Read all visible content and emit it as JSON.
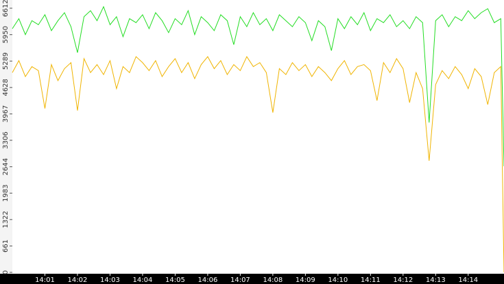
{
  "chart_data": {
    "type": "line",
    "x": [
      0,
      0.2,
      0.4,
      0.6,
      0.8,
      1.0,
      1.2,
      1.4,
      1.6,
      1.8,
      2.0,
      2.2,
      2.4,
      2.6,
      2.8,
      3.0,
      3.2,
      3.4,
      3.6,
      3.8,
      4.0,
      4.2,
      4.4,
      4.6,
      4.8,
      5.0,
      5.2,
      5.4,
      5.6,
      5.8,
      6.0,
      6.2,
      6.4,
      6.6,
      6.8,
      7.0,
      7.2,
      7.4,
      7.6,
      7.8,
      8.0,
      8.2,
      8.4,
      8.6,
      8.8,
      9.0,
      9.2,
      9.4,
      9.6,
      9.8,
      10.0,
      10.2,
      10.4,
      10.6,
      10.8,
      11.0,
      11.2,
      11.4,
      11.6,
      11.8,
      12.0,
      12.2,
      12.4,
      12.6,
      12.8,
      13.0,
      13.2,
      13.4,
      13.6,
      13.8,
      14.0,
      14.2,
      14.4,
      14.6,
      14.8,
      15.0,
      15.1
    ],
    "series": [
      {
        "color": "#22dd22",
        "values": [
          6100,
          6350,
          5950,
          6300,
          6200,
          6450,
          6050,
          6300,
          6500,
          6150,
          5500,
          6400,
          6550,
          6300,
          6650,
          6200,
          6400,
          5900,
          6350,
          6250,
          6450,
          6100,
          6500,
          6300,
          6000,
          6350,
          6200,
          6550,
          5950,
          6400,
          6250,
          6050,
          6450,
          6300,
          5700,
          6400,
          6150,
          6500,
          6200,
          6350,
          6050,
          6450,
          6300,
          6150,
          6400,
          6250,
          5800,
          6300,
          6150,
          5550,
          6350,
          6100,
          6400,
          6200,
          6500,
          6050,
          6350,
          6250,
          6450,
          6150,
          6300,
          6100,
          6400,
          6250,
          3750,
          6300,
          6450,
          6150,
          6400,
          6300,
          6550,
          6350,
          6500,
          6600,
          6250,
          6350,
          2655
        ]
      },
      {
        "color": "#f0b400",
        "values": [
          5000,
          5300,
          4900,
          5150,
          5050,
          4100,
          5200,
          4800,
          5100,
          5250,
          4050,
          5350,
          5000,
          5200,
          4950,
          5300,
          4600,
          5150,
          5000,
          5400,
          5250,
          5050,
          5300,
          4900,
          5150,
          5350,
          5000,
          5250,
          4850,
          5200,
          5400,
          5100,
          5300,
          4950,
          5200,
          5050,
          5400,
          5150,
          5250,
          5000,
          4000,
          5100,
          4950,
          5250,
          5050,
          5200,
          4900,
          5150,
          5000,
          4800,
          5100,
          5300,
          4950,
          5150,
          5200,
          5050,
          4300,
          5250,
          5000,
          5350,
          5100,
          4250,
          5000,
          4600,
          2792,
          4700,
          5050,
          4850,
          5150,
          4950,
          4600,
          5100,
          4900,
          4200,
          5000,
          5150,
          0
        ]
      }
    ],
    "xlim": [
      0,
      15.1
    ],
    "xticks": [
      {
        "value": 1,
        "label": "14:01"
      },
      {
        "value": 2,
        "label": "14:02"
      },
      {
        "value": 3,
        "label": "14:03"
      },
      {
        "value": 4,
        "label": "14:04"
      },
      {
        "value": 5,
        "label": "14:05"
      },
      {
        "value": 6,
        "label": "14:06"
      },
      {
        "value": 7,
        "label": "14:07"
      },
      {
        "value": 8,
        "label": "14:08"
      },
      {
        "value": 9,
        "label": "14:09"
      },
      {
        "value": 10,
        "label": "14:10"
      },
      {
        "value": 11,
        "label": "14:11"
      },
      {
        "value": 12,
        "label": "14:12"
      },
      {
        "value": 13,
        "label": "14:13"
      },
      {
        "value": 14,
        "label": "14:14"
      }
    ],
    "ylim": [
      0,
      6612
    ],
    "yticks": [
      0,
      661,
      1322,
      1983,
      2644,
      3306,
      3967,
      4628,
      5289,
      5950,
      6612
    ]
  }
}
